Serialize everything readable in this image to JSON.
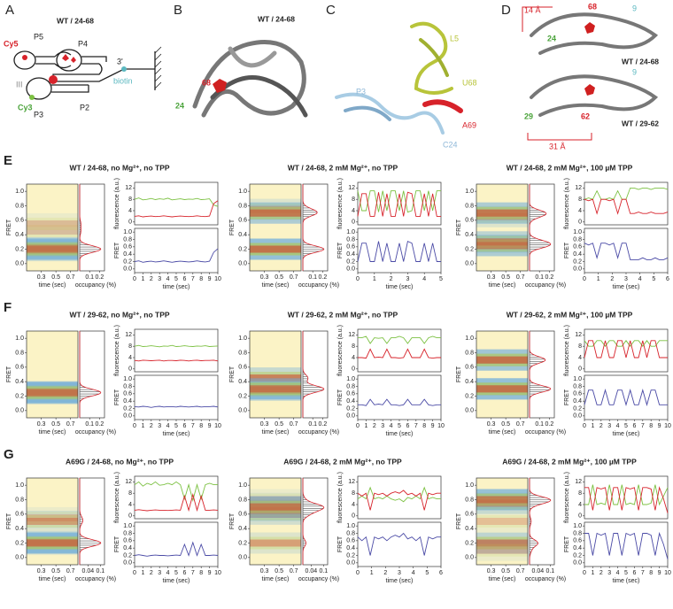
{
  "panel_a": {
    "label": "A",
    "title": "WT / 24-68",
    "labels": [
      "Cy5",
      "P5",
      "P4",
      "III",
      "3'",
      "Cy3",
      "biotin",
      "P3",
      "P2"
    ]
  },
  "panel_b": {
    "label": "B",
    "title": "WT / 24-68",
    "labels": [
      "68",
      "24"
    ]
  },
  "panel_c": {
    "label": "C",
    "labels": [
      "L5",
      "U68",
      "P3",
      "A69",
      "C24"
    ]
  },
  "panel_d": {
    "label": "D",
    "labels": [
      "14 Å",
      "68",
      "9",
      "24",
      "WT / 24-68",
      "9",
      "WT / 29-62",
      "29",
      "62",
      "31 Å"
    ]
  },
  "heatmap_axis": {
    "ylabel": "FRET",
    "xlabel": "time (sec)",
    "ylim": [
      -0.1,
      1.1
    ],
    "xlim": [
      0.1,
      0.8
    ],
    "yticks": [
      {
        "value": 0,
        "label": "0.0"
      },
      {
        "value": 0.2,
        "label": "0.2"
      },
      {
        "value": 0.4,
        "label": "0.4"
      },
      {
        "value": 0.6,
        "label": "0.6"
      },
      {
        "value": 0.8,
        "label": "0.8"
      },
      {
        "value": 1,
        "label": "1.0"
      }
    ],
    "xticks": [
      0.3,
      0.5,
      0.7
    ],
    "background": "#fbf3c6"
  },
  "occupancy_label": "occupancy (%)",
  "trace_axis": {
    "fluor_label": "fluorescence (a.u.)",
    "fluor_lim": [
      -1,
      14
    ],
    "fluor_ticks": [
      0,
      4,
      8,
      12
    ],
    "fret_label": "FRET",
    "fret_lim": [
      -0.1,
      1.1
    ],
    "fret_ticks": [
      {
        "value": 0,
        "label": "0.0"
      },
      {
        "value": 0.2,
        "label": "0.2"
      },
      {
        "value": 0.4,
        "label": "0.4"
      },
      {
        "value": 0.6,
        "label": "0.6"
      },
      {
        "value": 0.8,
        "label": "0.8"
      },
      {
        "value": 1,
        "label": "1.0"
      }
    ],
    "time_label": "time (sec)",
    "green_color": "#7cc142",
    "red_color": "#d7222a",
    "fret_color": "#4b4ba6"
  },
  "rows": [
    {
      "label": "E",
      "panels": [
        {
          "title": "WT / 24-68, no Mg²⁺, no TPP",
          "occupancy_lim": [
            0,
            0.25
          ],
          "occupancy_ticks": [
            0.1,
            0.2
          ],
          "xlim": [
            0,
            10
          ],
          "time_ticks": [
            0,
            1,
            2,
            3,
            4,
            5,
            6,
            7,
            8,
            9,
            10
          ],
          "x": [
            0,
            0.5,
            1,
            1.5,
            2,
            2.5,
            3,
            3.5,
            4,
            4.5,
            5,
            5.5,
            6,
            6.5,
            7,
            7.5,
            8,
            8.5,
            9,
            9.5,
            10
          ],
          "green": [
            8,
            8.5,
            7.8,
            8,
            8.3,
            7.9,
            8.2,
            8,
            8.4,
            7.8,
            8,
            8.2,
            7.9,
            8.1,
            8,
            8.3,
            7.9,
            8,
            8.2,
            6,
            5.5
          ],
          "red": [
            2,
            2.2,
            1.8,
            2,
            2.1,
            1.9,
            2,
            2.2,
            2,
            1.8,
            2,
            2.1,
            2,
            1.9,
            2,
            2.2,
            2,
            1.9,
            2.1,
            6.5,
            7.5
          ],
          "fret": [
            0.2,
            0.22,
            0.18,
            0.2,
            0.21,
            0.19,
            0.2,
            0.22,
            0.2,
            0.18,
            0.2,
            0.21,
            0.2,
            0.19,
            0.2,
            0.22,
            0.2,
            0.19,
            0.21,
            0.45,
            0.55
          ]
        },
        {
          "title": "WT / 24-68, 2 mM Mg²⁺, no TPP",
          "occupancy_lim": [
            0,
            0.25
          ],
          "occupancy_ticks": [
            0.1,
            0.2
          ],
          "xlim": [
            0,
            5
          ],
          "time_ticks": [
            0,
            1,
            2,
            3,
            4,
            5
          ],
          "x": [
            0,
            0.25,
            0.5,
            0.75,
            1,
            1.25,
            1.5,
            1.75,
            2,
            2.25,
            2.5,
            2.75,
            3,
            3.25,
            3.5,
            3.75,
            4,
            4.25,
            4.5,
            4.75,
            5
          ],
          "green": [
            11,
            4,
            4,
            11,
            11,
            3.5,
            11,
            4,
            11,
            11,
            4,
            11,
            3.5,
            4,
            11,
            11,
            4,
            11,
            4,
            11,
            11
          ],
          "red": [
            2,
            10,
            10,
            2,
            2,
            10.5,
            2,
            10,
            2,
            2,
            10,
            2,
            10.5,
            10,
            2,
            2,
            10,
            2,
            10,
            2,
            2
          ],
          "fret": [
            0.2,
            0.7,
            0.7,
            0.2,
            0.2,
            0.75,
            0.2,
            0.7,
            0.2,
            0.2,
            0.7,
            0.2,
            0.75,
            0.7,
            0.2,
            0.2,
            0.7,
            0.2,
            0.7,
            0.2,
            0.2
          ]
        },
        {
          "title": "WT / 24-68, 2 mM Mg²⁺, 100 µM TPP",
          "occupancy_lim": [
            0,
            0.25
          ],
          "occupancy_ticks": [
            0.1,
            0.2
          ],
          "xlim": [
            0,
            6
          ],
          "time_ticks": [
            0,
            1,
            2,
            3,
            4,
            5,
            6
          ],
          "x": [
            0,
            0.3,
            0.6,
            0.9,
            1.2,
            1.5,
            1.8,
            2.1,
            2.4,
            2.7,
            3,
            3.3,
            3.6,
            3.9,
            4.2,
            4.5,
            4.8,
            5.1,
            5.4,
            5.7,
            6
          ],
          "green": [
            8,
            8.5,
            8,
            11,
            8,
            8,
            8.5,
            8,
            11,
            8,
            8,
            12,
            12,
            11.5,
            12,
            12,
            11.5,
            12,
            12,
            12,
            11.5
          ],
          "red": [
            8,
            7.5,
            8,
            3,
            8,
            8,
            7.5,
            8,
            3,
            8,
            8,
            3,
            3,
            3.5,
            3,
            3,
            3.5,
            3,
            3,
            3,
            3.5
          ],
          "fret": [
            0.7,
            0.65,
            0.7,
            0.3,
            0.7,
            0.7,
            0.65,
            0.7,
            0.3,
            0.7,
            0.7,
            0.25,
            0.25,
            0.25,
            0.3,
            0.25,
            0.25,
            0.3,
            0.25,
            0.25,
            0.3
          ]
        }
      ]
    },
    {
      "label": "F",
      "panels": [
        {
          "title": "WT / 29-62, no Mg²⁺, no TPP",
          "occupancy_lim": [
            0,
            0.25
          ],
          "occupancy_ticks": [
            0.1,
            0.2
          ],
          "xlim": [
            0,
            10
          ],
          "time_ticks": [
            0,
            1,
            2,
            3,
            4,
            5,
            6,
            7,
            8,
            9,
            10
          ],
          "x": [
            0,
            0.5,
            1,
            1.5,
            2,
            2.5,
            3,
            3.5,
            4,
            4.5,
            5,
            5.5,
            6,
            6.5,
            7,
            7.5,
            8,
            8.5,
            9,
            9.5,
            10
          ],
          "green": [
            8,
            8.3,
            7.9,
            8,
            8.2,
            8,
            7.8,
            8.1,
            8,
            8.3,
            7.9,
            8,
            8.2,
            8,
            7.9,
            8.1,
            8,
            8.2,
            7.9,
            8,
            8.1
          ],
          "red": [
            3,
            2.8,
            3.1,
            3,
            2.9,
            3,
            3.1,
            2.8,
            3,
            3,
            2.9,
            3.1,
            3,
            2.8,
            3,
            3.1,
            2.9,
            3,
            3,
            3.1,
            2.8
          ],
          "fret": [
            0.25,
            0.24,
            0.26,
            0.25,
            0.23,
            0.25,
            0.26,
            0.24,
            0.25,
            0.25,
            0.24,
            0.26,
            0.25,
            0.24,
            0.25,
            0.26,
            0.24,
            0.25,
            0.25,
            0.26,
            0.24
          ]
        },
        {
          "title": "WT / 29-62, 2 mM Mg²⁺, no TPP",
          "occupancy_lim": [
            0,
            0.25
          ],
          "occupancy_ticks": [
            0.1,
            0.2
          ],
          "xlim": [
            0,
            10
          ],
          "time_ticks": [
            0,
            1,
            2,
            3,
            4,
            5,
            6,
            7,
            8,
            9,
            10
          ],
          "x": [
            0,
            0.5,
            1,
            1.5,
            2,
            2.5,
            3,
            3.5,
            4,
            4.5,
            5,
            5.5,
            6,
            6.5,
            7,
            7.5,
            8,
            8.5,
            9,
            9.5,
            10
          ],
          "green": [
            11,
            11,
            11.5,
            9,
            11,
            10.8,
            11,
            9,
            11,
            11,
            11.5,
            11,
            9,
            11,
            11,
            11,
            9,
            11,
            11.5,
            11,
            11
          ],
          "red": [
            4,
            4,
            3.8,
            7,
            4,
            4.2,
            4,
            7,
            4,
            4,
            3.8,
            4,
            7,
            4,
            4,
            4,
            7,
            4,
            3.8,
            4,
            4
          ],
          "fret": [
            0.3,
            0.3,
            0.28,
            0.45,
            0.3,
            0.32,
            0.3,
            0.45,
            0.3,
            0.3,
            0.28,
            0.3,
            0.45,
            0.3,
            0.3,
            0.3,
            0.45,
            0.3,
            0.28,
            0.3,
            0.3
          ]
        },
        {
          "title": "WT / 29-62, 2 mM Mg²⁺, 100 µM TPP",
          "occupancy_lim": [
            0,
            0.25
          ],
          "occupancy_ticks": [
            0.1,
            0.2
          ],
          "xlim": [
            0,
            10
          ],
          "time_ticks": [
            0,
            1,
            2,
            3,
            4,
            5,
            6,
            7,
            8,
            9,
            10
          ],
          "x": [
            0,
            0.5,
            1,
            1.5,
            2,
            2.5,
            3,
            3.5,
            4,
            4.5,
            5,
            5.5,
            6,
            6.5,
            7,
            7.5,
            8,
            8.5,
            9,
            9.5,
            10
          ],
          "green": [
            10,
            8,
            8,
            10,
            10,
            8,
            10,
            10,
            8,
            8,
            10,
            8,
            10,
            10,
            8,
            10,
            8,
            8,
            10,
            10,
            10
          ],
          "red": [
            4,
            10,
            10,
            4,
            4,
            10,
            4,
            4,
            10,
            10,
            4,
            10,
            4,
            4,
            10,
            4,
            10,
            10,
            4,
            4,
            4
          ],
          "fret": [
            0.3,
            0.7,
            0.7,
            0.3,
            0.3,
            0.7,
            0.3,
            0.3,
            0.7,
            0.7,
            0.3,
            0.7,
            0.3,
            0.3,
            0.7,
            0.3,
            0.7,
            0.7,
            0.3,
            0.3,
            0.3
          ]
        }
      ]
    },
    {
      "label": "G",
      "panels": [
        {
          "title": "A69G / 24-68, no Mg²⁺, no TPP",
          "occupancy_lim": [
            0,
            0.12
          ],
          "occupancy_ticks": [
            0.04,
            0.1
          ],
          "xlim": [
            0,
            10
          ],
          "time_ticks": [
            0,
            1,
            2,
            3,
            4,
            5,
            6,
            7,
            8,
            9,
            10
          ],
          "x": [
            0,
            0.5,
            1,
            1.5,
            2,
            2.5,
            3,
            3.5,
            4,
            4.5,
            5,
            5.5,
            6,
            6.5,
            7,
            7.5,
            8,
            8.5,
            9,
            9.5,
            10
          ],
          "green": [
            11,
            12,
            10.5,
            11.5,
            11,
            12,
            10.8,
            11,
            11.5,
            11,
            12,
            11,
            6,
            11,
            5.5,
            11,
            6,
            11,
            11.5,
            11,
            11
          ],
          "red": [
            2,
            2.2,
            2,
            1.8,
            2,
            2.1,
            2,
            2,
            1.9,
            2,
            2.1,
            2,
            7,
            2,
            7.5,
            2,
            7,
            2,
            2,
            2.1,
            2
          ],
          "fret": [
            0.2,
            0.22,
            0.2,
            0.18,
            0.2,
            0.21,
            0.2,
            0.2,
            0.19,
            0.2,
            0.21,
            0.2,
            0.5,
            0.2,
            0.55,
            0.2,
            0.5,
            0.2,
            0.2,
            0.21,
            0.2
          ]
        },
        {
          "title": "A69G / 24-68, 2 mM Mg²⁺, no TPP",
          "occupancy_lim": [
            0,
            0.12
          ],
          "occupancy_ticks": [
            0.04,
            0.1
          ],
          "xlim": [
            0,
            6
          ],
          "time_ticks": [
            0,
            1,
            2,
            3,
            4,
            5,
            6
          ],
          "x": [
            0,
            0.3,
            0.6,
            0.9,
            1.2,
            1.5,
            1.8,
            2.1,
            2.4,
            2.7,
            3,
            3.3,
            3.6,
            3.9,
            4.2,
            4.5,
            4.8,
            5.1,
            5.4,
            5.7,
            6
          ],
          "green": [
            6,
            7,
            6,
            10,
            6,
            6.5,
            6,
            7,
            6,
            5.5,
            6,
            5,
            6.5,
            6,
            7,
            6,
            10,
            6,
            6.5,
            6,
            6
          ],
          "red": [
            8,
            7,
            8,
            2,
            8,
            7.5,
            8,
            7,
            8,
            8.5,
            8,
            9,
            7.5,
            8,
            7,
            8,
            2,
            8,
            7.5,
            8,
            8
          ],
          "fret": [
            0.7,
            0.6,
            0.7,
            0.2,
            0.7,
            0.65,
            0.7,
            0.6,
            0.7,
            0.75,
            0.7,
            0.8,
            0.65,
            0.7,
            0.6,
            0.7,
            0.2,
            0.7,
            0.65,
            0.7,
            0.7
          ]
        },
        {
          "title": "A69G / 24-68, 2 mM Mg²⁺, 100 µM TPP",
          "occupancy_lim": [
            0,
            0.12
          ],
          "occupancy_ticks": [
            0.04,
            0.1
          ],
          "xlim": [
            0,
            10
          ],
          "time_ticks": [
            0,
            1,
            2,
            3,
            4,
            5,
            6,
            7,
            8,
            9,
            10
          ],
          "x": [
            0,
            0.5,
            1,
            1.5,
            2,
            2.5,
            3,
            3.5,
            4,
            4.5,
            5,
            5.5,
            6,
            6.5,
            7,
            7.5,
            8,
            8.5,
            9,
            9.5,
            10
          ],
          "green": [
            4,
            4,
            11,
            4,
            4.5,
            4,
            11,
            4,
            4,
            11,
            4,
            4.5,
            4,
            11,
            4,
            4,
            4.5,
            11,
            4,
            7,
            10
          ],
          "red": [
            10,
            10,
            2,
            10,
            9.5,
            10,
            2,
            10,
            10,
            2,
            10,
            9.5,
            10,
            2,
            10,
            10,
            9.5,
            2,
            10,
            6,
            1
          ],
          "fret": [
            0.8,
            0.8,
            0.2,
            0.8,
            0.75,
            0.8,
            0.2,
            0.8,
            0.8,
            0.2,
            0.8,
            0.75,
            0.8,
            0.2,
            0.8,
            0.8,
            0.75,
            0.2,
            0.8,
            0.5,
            0.1
          ]
        }
      ]
    }
  ]
}
